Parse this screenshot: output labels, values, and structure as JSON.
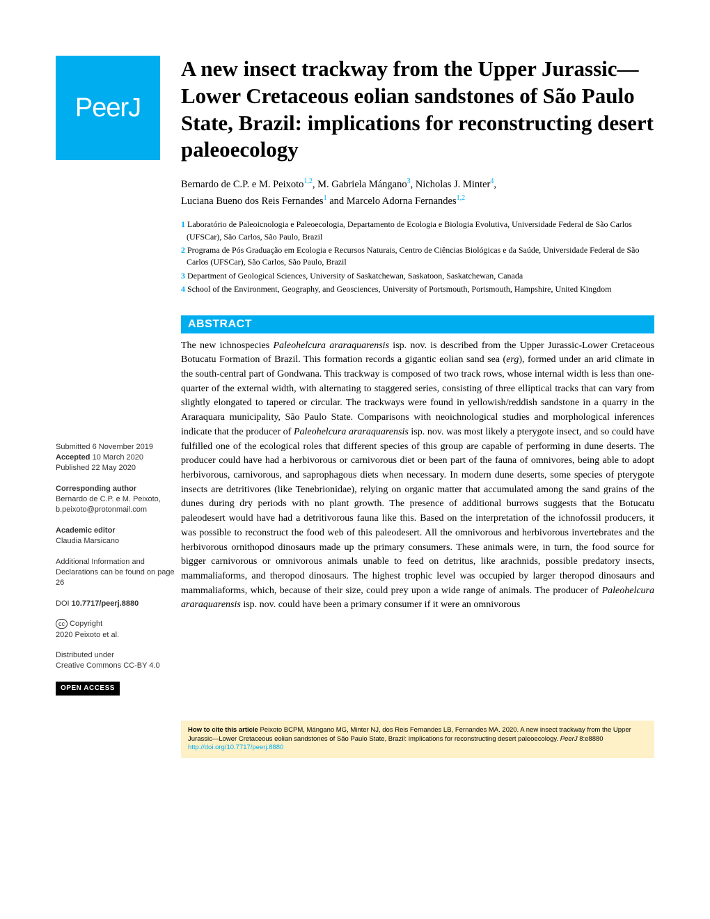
{
  "logo": "PeerJ",
  "title": "A new insect trackway from the Upper Jurassic—Lower Cretaceous eolian sandstones of São Paulo State, Brazil: implications for reconstructing desert paleoecology",
  "authors_line1_a": "Bernardo de C.P. e M. Peixoto",
  "authors_line1_a_sup": "1,2",
  "authors_line1_b": ",  M. Gabriela Mángano",
  "authors_line1_b_sup": "3",
  "authors_line1_c": ",  Nicholas J. Minter",
  "authors_line1_c_sup": "4",
  "authors_line1_d": ",",
  "authors_line2_a": "Luciana Bueno dos Reis Fernandes",
  "authors_line2_a_sup": "1",
  "authors_line2_b": " and  Marcelo Adorna Fernandes",
  "authors_line2_b_sup": "1,2",
  "aff1_num": "1 ",
  "aff1": "Laboratório de Paleoicnologia e Paleoecologia, Departamento de Ecologia e Biologia Evolutiva, Universidade Federal de São Carlos (UFSCar), São Carlos, São Paulo, Brazil",
  "aff2_num": "2 ",
  "aff2": "Programa de Pós Graduação em Ecologia e Recursos Naturais, Centro de Ciências Biológicas e da Saúde, Universidade Federal de São Carlos (UFSCar), São Carlos, São Paulo, Brazil",
  "aff3_num": "3 ",
  "aff3": "Department of Geological Sciences, University of Saskatchewan, Saskatoon, Saskatchewan, Canada",
  "aff4_num": "4 ",
  "aff4": "School of the Environment, Geography, and Geosciences, University of Portsmouth, Portsmouth, Hampshire, United Kingdom",
  "meta": {
    "submitted_label": "Submitted",
    "submitted": " 6 November 2019",
    "accepted_label": "Accepted ",
    "accepted": " 10 March 2020",
    "published_label": "Published",
    "published": " 22 May 2020",
    "corr_label": "Corresponding author",
    "corr_name": "Bernardo de C.P. e M. Peixoto,",
    "corr_email": "b.peixoto@protonmail.com",
    "editor_label": "Academic editor",
    "editor": "Claudia Marsicano",
    "addl": "Additional Information and Declarations can be found on page 26",
    "doi_label": "DOI ",
    "doi": "10.7717/peerj.8880",
    "copyright_label": " Copyright",
    "copyright": "2020 Peixoto et al.",
    "dist_label": "Distributed under",
    "dist": "Creative Commons CC-BY 4.0",
    "open_access": "OPEN ACCESS"
  },
  "abstract_header": "ABSTRACT",
  "abstract_html": "The new ichnospecies <em>Paleohelcura araraquarensis</em> isp. nov. is described from the Upper Jurassic-Lower Cretaceous Botucatu Formation of Brazil. This formation records a gigantic eolian sand sea (<em>erg</em>), formed under an arid climate in the south-central part of Gondwana. This trackway is composed of two track rows, whose internal width is less than one-quarter of the external width, with alternating to staggered series, consisting of three elliptical tracks that can vary from slightly elongated to tapered or circular. The trackways were found in yellowish/reddish sandstone in a quarry in the Araraquara municipality, São Paulo State. Comparisons with neoichnological studies and morphological inferences indicate that the producer of <em>Paleohelcura araraquarensis</em> isp. nov. was most likely a pterygote insect, and so could have fulfilled one of the ecological roles that different species of this group are capable of performing in dune deserts. The producer could have had a herbivorous or carnivorous diet or been part of the fauna of omnivores, being able to adopt herbivorous, carnivorous, and saprophagous diets when necessary. In modern dune deserts, some species of pterygote insects are detritivores (like Tenebrionidae), relying on organic matter that accumulated among the sand grains of the dunes during dry periods with no plant growth. The presence of additional burrows suggests that the Botucatu paleodesert would have had a detritivorous fauna like this. Based on the interpretation of the ichnofossil producers, it was possible to reconstruct the food web of this paleodesert. All the omnivorous and herbivorous invertebrates and the herbivorous ornithopod dinosaurs made up the primary consumers. These animals were, in turn, the food source for bigger carnivorous or omnivorous animals unable to feed on detritus, like arachnids, possible predatory insects, mammaliaforms, and theropod dinosaurs. The highest trophic level was occupied by larger theropod dinosaurs and mammaliaforms, which, because of their size, could prey upon a wide range of animals. The producer of <em>Paleohelcura araraquarensis</em> isp. nov. could have been a primary consumer if it were an omnivorous",
  "citation": {
    "label": "How to cite this article",
    "text": " Peixoto BCPM, Mángano MG, Minter NJ, dos Reis Fernandes LB, Fernandes MA. 2020. A new insect trackway from the Upper Jurassic—Lower Cretaceous eolian sandstones of São Paulo State, Brazil: implications for reconstructing desert paleoecology. ",
    "journal": "PeerJ",
    "vol": " 8:e8880 ",
    "link": "http://doi.org/10.7717/peerj.8880"
  }
}
